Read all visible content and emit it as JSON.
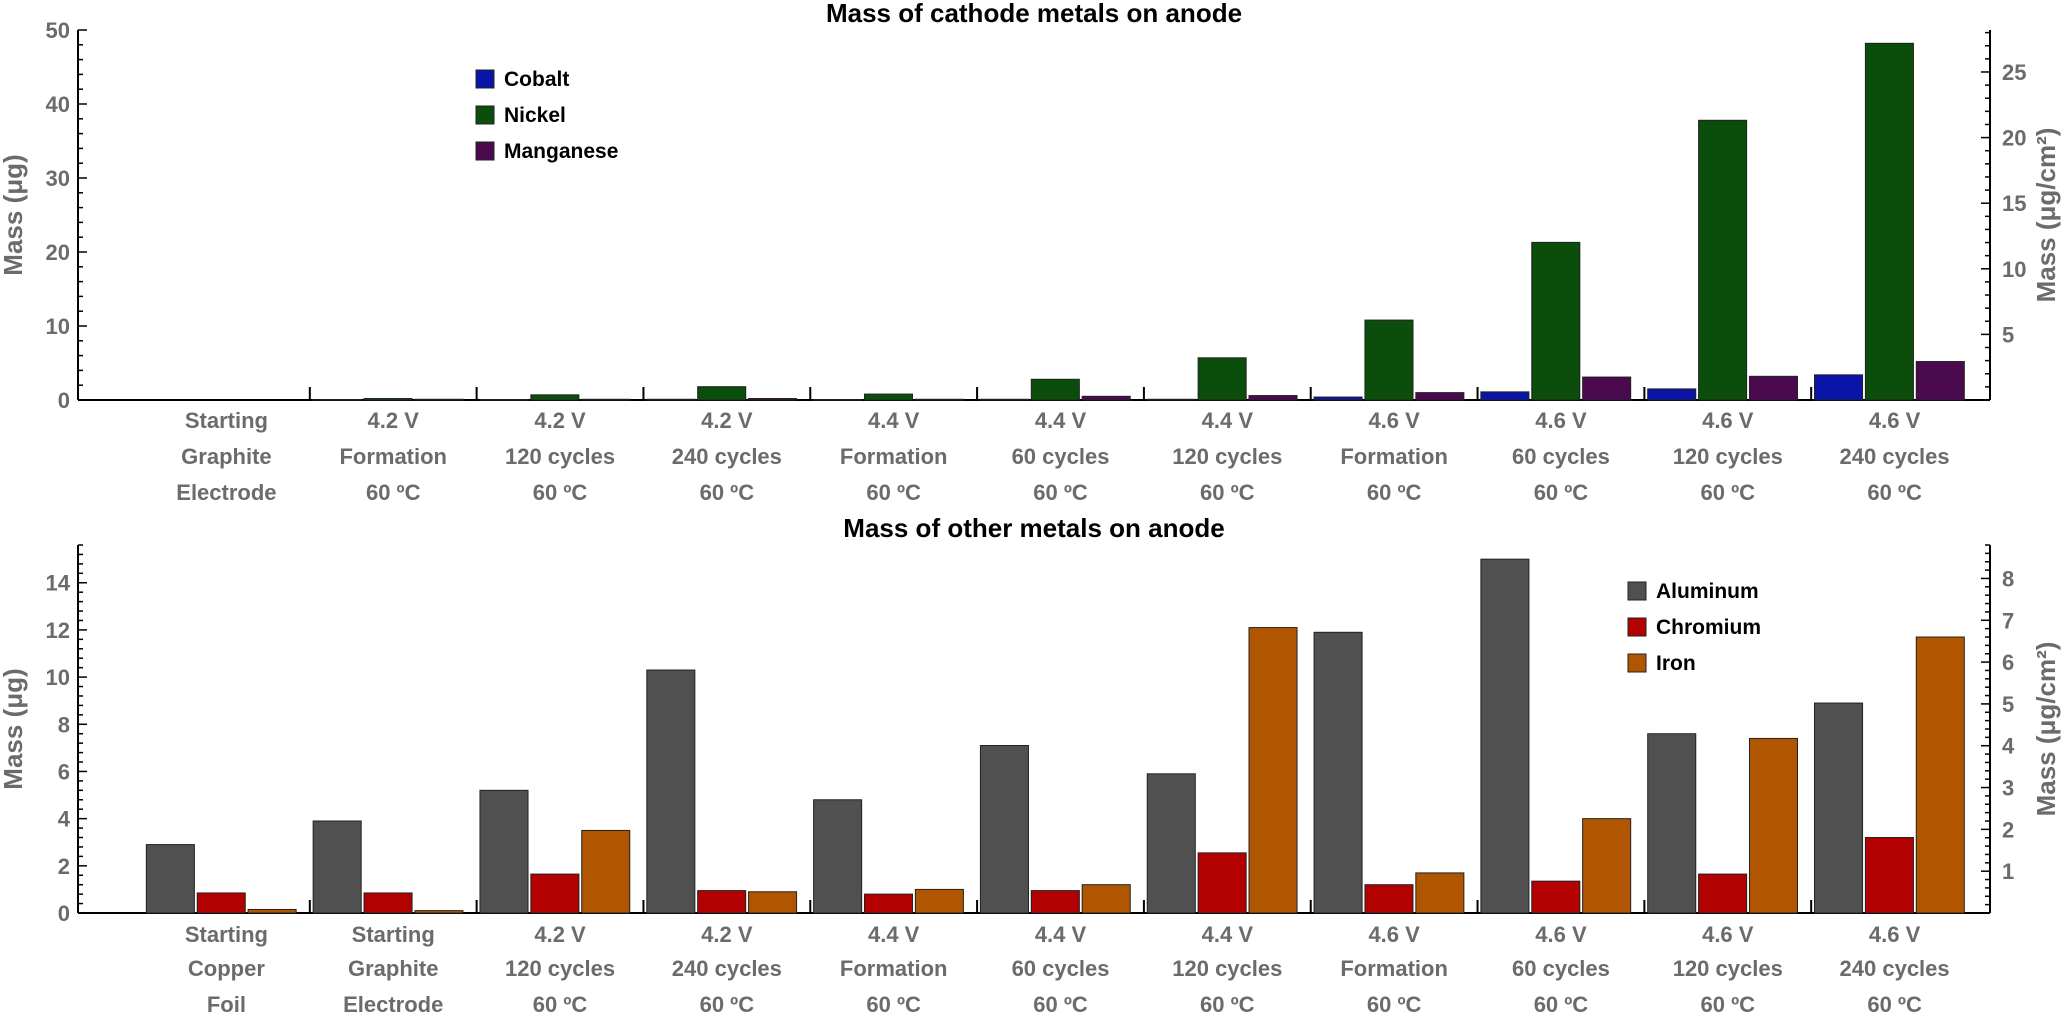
{
  "chart_data": [
    {
      "type": "bar",
      "title": "Mass of cathode metals on anode",
      "ylabel": "Mass (μg)",
      "ylabel_right": "Mass (μg/cm²)",
      "ylim": [
        0,
        50
      ],
      "yticks": [
        0,
        10,
        20,
        30,
        40,
        50
      ],
      "ylim_right": [
        0,
        28.2
      ],
      "yticks_right": [
        5,
        10,
        15,
        20,
        25
      ],
      "grid": false,
      "legend_position": "top-left",
      "categories": [
        [
          "Starting",
          "Graphite",
          "Electrode"
        ],
        [
          "4.2 V",
          "Formation",
          "60 ºC"
        ],
        [
          "4.2 V",
          "120 cycles",
          "60 ºC"
        ],
        [
          "4.2 V",
          "240 cycles",
          "60 ºC"
        ],
        [
          "4.4 V",
          "Formation",
          "60 ºC"
        ],
        [
          "4.4 V",
          "60 cycles",
          "60 ºC"
        ],
        [
          "4.4 V",
          "120 cycles",
          "60 ºC"
        ],
        [
          "4.6 V",
          "Formation",
          "60 ºC"
        ],
        [
          "4.6 V",
          "60 cycles",
          "60 ºC"
        ],
        [
          "4.6 V",
          "120 cycles",
          "60 ºC"
        ],
        [
          "4.6 V",
          "240 cycles",
          "60 ºC"
        ]
      ],
      "series": [
        {
          "name": "Cobalt",
          "color": "#0a14a6",
          "values": [
            0,
            0.05,
            0.05,
            0.1,
            0.05,
            0.1,
            0.1,
            0.4,
            1.1,
            1.5,
            3.4
          ]
        },
        {
          "name": "Nickel",
          "color": "#0b4d0b",
          "values": [
            0,
            0.2,
            0.7,
            1.8,
            0.8,
            2.8,
            5.7,
            10.8,
            21.3,
            37.8,
            48.2
          ]
        },
        {
          "name": "Manganese",
          "color": "#4a0a4d",
          "values": [
            0,
            0.1,
            0.1,
            0.2,
            0.1,
            0.5,
            0.6,
            1.0,
            3.1,
            3.2,
            5.2
          ]
        }
      ]
    },
    {
      "type": "bar",
      "title": "Mass of other metals on anode",
      "ylabel": "Mass (μg)",
      "ylabel_right": "Mass (μg/cm²)",
      "ylim": [
        0,
        15.6
      ],
      "yticks": [
        0,
        2,
        4,
        6,
        8,
        10,
        12,
        14
      ],
      "ylim_right": [
        0,
        8.8
      ],
      "yticks_right": [
        1,
        2,
        3,
        4,
        5,
        6,
        7,
        8
      ],
      "grid": false,
      "legend_position": "top-right",
      "categories": [
        [
          "Starting",
          "Copper",
          "Foil"
        ],
        [
          "Starting",
          "Graphite",
          "Electrode"
        ],
        [
          "4.2 V",
          "120 cycles",
          "60 ºC"
        ],
        [
          "4.2 V",
          "240 cycles",
          "60 ºC"
        ],
        [
          "4.4 V",
          "Formation",
          "60 ºC"
        ],
        [
          "4.4 V",
          "60 cycles",
          "60 ºC"
        ],
        [
          "4.4 V",
          "120 cycles",
          "60 ºC"
        ],
        [
          "4.6 V",
          "Formation",
          "60 ºC"
        ],
        [
          "4.6 V",
          "60 cycles",
          "60 ºC"
        ],
        [
          "4.6 V",
          "120 cycles",
          "60 ºC"
        ],
        [
          "4.6 V",
          "240 cycles",
          "60 ºC"
        ]
      ],
      "series": [
        {
          "name": "Aluminum",
          "color": "#505050",
          "values": [
            2.9,
            3.9,
            5.2,
            10.3,
            4.8,
            7.1,
            5.9,
            11.9,
            15.0,
            7.6,
            8.9
          ]
        },
        {
          "name": "Chromium",
          "color": "#b30000",
          "values": [
            0.85,
            0.85,
            1.65,
            0.95,
            0.8,
            0.95,
            2.55,
            1.2,
            1.35,
            1.65,
            3.2
          ]
        },
        {
          "name": "Iron",
          "color": "#b05500",
          "values": [
            0.15,
            0.1,
            3.5,
            0.9,
            1.0,
            1.2,
            12.1,
            1.7,
            4.0,
            7.4,
            11.7
          ]
        }
      ]
    }
  ]
}
